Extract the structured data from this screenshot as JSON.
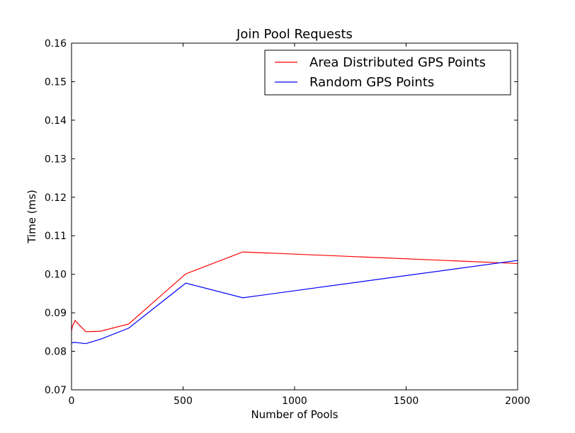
{
  "chart_data": {
    "type": "line",
    "title": "Join Pool Requests",
    "xlabel": "Number of Pools",
    "ylabel": "Time (ms)",
    "xlim": [
      0,
      2000
    ],
    "ylim": [
      0.07,
      0.16
    ],
    "xticks": [
      0,
      500,
      1000,
      1500,
      2000
    ],
    "xtick_labels": [
      "0",
      "500",
      "1000",
      "1500",
      "2000"
    ],
    "yticks": [
      0.07,
      0.08,
      0.09,
      0.1,
      0.11,
      0.12,
      0.13,
      0.14,
      0.15,
      0.16
    ],
    "ytick_labels": [
      "0.07",
      "0.08",
      "0.09",
      "0.10",
      "0.11",
      "0.12",
      "0.13",
      "0.14",
      "0.15",
      "0.16"
    ],
    "grid": false,
    "legend_position": "top-right",
    "series": [
      {
        "name": "Area Distributed GPS Points",
        "color": "#ff0000",
        "x": [
          1,
          2,
          4,
          8,
          16,
          32,
          64,
          128,
          256,
          512,
          768,
          2000
        ],
        "y": [
          0.0855,
          0.086,
          0.0865,
          0.087,
          0.088,
          0.087,
          0.0851,
          0.0852,
          0.0871,
          0.1001,
          0.1058,
          0.1028
        ]
      },
      {
        "name": "Random GPS Points",
        "color": "#0000ff",
        "x": [
          1,
          2,
          4,
          8,
          16,
          32,
          64,
          128,
          256,
          512,
          768,
          2000
        ],
        "y": [
          0.0822,
          0.0822,
          0.0822,
          0.0823,
          0.0823,
          0.0822,
          0.082,
          0.0831,
          0.086,
          0.0977,
          0.0939,
          0.1036
        ]
      }
    ]
  }
}
